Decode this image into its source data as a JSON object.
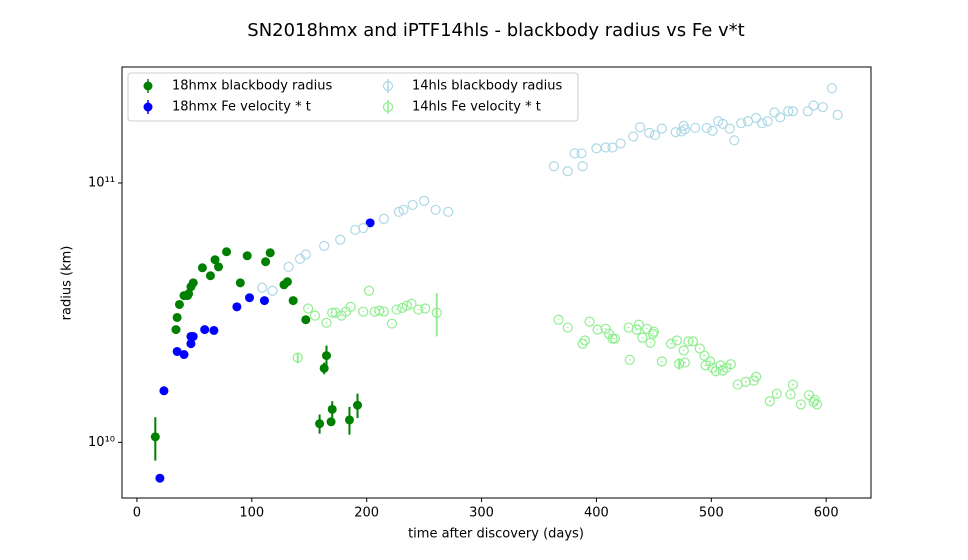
{
  "chart_data": {
    "type": "scatter",
    "title": "SN2018hmx and iPTF14hls - blackbody radius vs Fe v*t",
    "x_label": "time after discovery (days)",
    "y_label": "radius (km)",
    "xlim": [
      -13,
      639
    ],
    "ylim": [
      6100000000.0,
      280000000000.0
    ],
    "ylog": true,
    "xticks": [
      0,
      100,
      200,
      300,
      400,
      500,
      600
    ],
    "yticks": [
      {
        "value": 10000000000.0,
        "label": "10¹⁰"
      },
      {
        "value": 100000000000.0,
        "label": "10¹¹"
      }
    ],
    "legend": "upper left",
    "series": [
      {
        "name": "18hmx blackbody radius",
        "color": "#008000",
        "filled": true,
        "x": [
          16,
          34,
          35,
          37,
          41,
          44,
          45,
          47,
          49,
          57,
          64,
          68,
          71,
          78,
          90,
          96,
          112,
          116,
          128,
          131,
          136,
          147,
          159,
          163,
          165,
          169,
          170,
          185,
          192
        ],
        "values": [
          10500000000.0,
          27200000000.0,
          30300000000.0,
          34000000000.0,
          36800000000.0,
          36800000000.0,
          37400000000.0,
          39800000000.0,
          41200000000.0,
          47100000000.0,
          43900000000.0,
          50600000000.0,
          47500000000.0,
          54300000000.0,
          41200000000.0,
          52400000000.0,
          49700000000.0,
          53800000000.0,
          40500000000.0,
          41600000000.0,
          35200000000.0,
          29700000000.0,
          11800000000.0,
          19300000000.0,
          21600000000.0,
          12000000000.0,
          13400000000.0,
          12200000000.0,
          13900000000.0
        ],
        "errors": [
          2000000000.0,
          100000000.0,
          100000000.0,
          100000000.0,
          100000000.0,
          100000000.0,
          100000000.0,
          100000000.0,
          100000000.0,
          100000000.0,
          100000000.0,
          100000000.0,
          100000000.0,
          100000000.0,
          100000000.0,
          100000000.0,
          100000000.0,
          100000000.0,
          100000000.0,
          100000000.0,
          100000000.0,
          100000000.0,
          1000000000.0,
          1000000000.0,
          2000000000.0,
          100000000.0,
          1000000000.0,
          1500000000.0,
          1500000000.0
        ]
      },
      {
        "name": "18hmx Fe velocity * t",
        "color": "#0000ff",
        "filled": true,
        "x": [
          20,
          23.5,
          35,
          41,
          47,
          47,
          49,
          59,
          67,
          87,
          98,
          111,
          203
        ],
        "values": [
          7270000000.0,
          15800000000.0,
          22400000000.0,
          21800000000.0,
          24000000000.0,
          25600000000.0,
          25600000000.0,
          27200000000.0,
          27000000000.0,
          33300000000.0,
          36100000000.0,
          35200000000.0,
          70200000000.0
        ]
      },
      {
        "name": "14hls blackbody radius",
        "color": "#add8e6",
        "filled": false,
        "x": [
          109,
          118,
          132,
          142,
          147,
          163,
          177,
          190,
          197,
          215,
          228,
          232,
          240,
          250,
          260,
          271,
          363,
          375,
          381,
          387,
          388,
          400,
          408,
          414,
          421,
          432,
          438,
          446,
          451,
          457,
          469,
          474,
          476,
          477,
          486,
          496,
          501,
          506,
          510,
          516,
          520,
          526,
          532,
          539,
          544,
          549,
          555,
          560,
          567,
          571,
          584,
          589,
          597,
          605,
          610
        ],
        "values": [
          39500000000.0,
          38400000000.0,
          47500000000.0,
          51000000000.0,
          53000000000.0,
          57200000000.0,
          60400000000.0,
          65900000000.0,
          67000000000.0,
          72700000000.0,
          77400000000.0,
          78800000000.0,
          82300000000.0,
          85300000000.0,
          78800000000.0,
          77400000000.0,
          116000000000.0,
          111000000000.0,
          130000000000.0,
          130000000000.0,
          116000000000.0,
          136000000000.0,
          137000000000.0,
          137000000000.0,
          142000000000.0,
          151000000000.0,
          164000000000.0,
          156000000000.0,
          153000000000.0,
          162000000000.0,
          157000000000.0,
          158000000000.0,
          166000000000.0,
          161000000000.0,
          163000000000.0,
          163000000000.0,
          159000000000.0,
          173000000000.0,
          169000000000.0,
          162000000000.0,
          146000000000.0,
          170000000000.0,
          173000000000.0,
          178000000000.0,
          170000000000.0,
          173000000000.0,
          187000000000.0,
          179000000000.0,
          189000000000.0,
          189000000000.0,
          189000000000.0,
          199000000000.0,
          196000000000.0,
          232000000000.0,
          183000000000.0
        ]
      },
      {
        "name": "14hls Fe velocity * t",
        "color": "#90ee90",
        "filled": false,
        "x": [
          140,
          149,
          155,
          165,
          170,
          173,
          178,
          182,
          186,
          197,
          202,
          207,
          211,
          215,
          222,
          226,
          231,
          235,
          239,
          245,
          251,
          261,
          367,
          375,
          388,
          390,
          394,
          401,
          408,
          411,
          414,
          416,
          428,
          429,
          435,
          437,
          440,
          444,
          447,
          449,
          450,
          457,
          465,
          470,
          472,
          476,
          477,
          480,
          484,
          490,
          494,
          495,
          499,
          501,
          504,
          508,
          510,
          513,
          517,
          523,
          530,
          537,
          539,
          551,
          557,
          569,
          571,
          578,
          585,
          589,
          590,
          592
        ],
        "values": [
          21200000000.0,
          32800000000.0,
          30800000000.0,
          28900000000.0,
          31600000000.0,
          31600000000.0,
          30800000000.0,
          31900000000.0,
          33300000000.0,
          31900000000.0,
          38400000000.0,
          31900000000.0,
          32200000000.0,
          31900000000.0,
          28700000000.0,
          32500000000.0,
          33000000000.0,
          33600000000.0,
          34200000000.0,
          32500000000.0,
          32800000000.0,
          31600000000.0,
          29700000000.0,
          27700000000.0,
          24000000000.0,
          24700000000.0,
          29200000000.0,
          27200000000.0,
          27400000000.0,
          26200000000.0,
          25100000000.0,
          25100000000.0,
          27700000000.0,
          20800000000.0,
          27200000000.0,
          28400000000.0,
          25300000000.0,
          27400000000.0,
          24200000000.0,
          26200000000.0,
          26700000000.0,
          20500000000.0,
          24000000000.0,
          24700000000.0,
          20100000000.0,
          22600000000.0,
          20300000000.0,
          24500000000.0,
          24500000000.0,
          23000000000.0,
          21600000000.0,
          19800000000.0,
          20500000000.0,
          19400000000.0,
          18800000000.0,
          19800000000.0,
          18900000000.0,
          19400000000.0,
          20000000000.0,
          16700000000.0,
          17100000000.0,
          17300000000.0,
          17900000000.0,
          14400000000.0,
          15400000000.0,
          15300000000.0,
          16700000000.0,
          14000000000.0,
          15200000000.0,
          14300000000.0,
          14600000000.0,
          14000000000.0
        ],
        "errors": [
          1000000000.0,
          100000000.0,
          100000000.0,
          100000000.0,
          100000000.0,
          100000000.0,
          100000000.0,
          100000000.0,
          100000000.0,
          100000000.0,
          100000000.0,
          100000000.0,
          100000000.0,
          100000000.0,
          100000000.0,
          100000000.0,
          100000000.0,
          100000000.0,
          100000000.0,
          100000000.0,
          100000000.0,
          6000000000.0,
          100000000.0,
          100000000.0,
          100000000.0,
          100000000.0,
          100000000.0,
          100000000.0,
          100000000.0,
          100000000.0,
          100000000.0,
          100000000.0,
          100000000.0,
          100000000.0,
          100000000.0,
          100000000.0,
          100000000.0,
          100000000.0,
          100000000.0,
          100000000.0,
          100000000.0,
          100000000.0,
          100000000.0,
          100000000.0,
          1000000000.0,
          100000000.0,
          100000000.0,
          100000000.0,
          100000000.0,
          100000000.0,
          100000000.0,
          100000000.0,
          100000000.0,
          100000000.0,
          100000000.0,
          100000000.0,
          100000000.0,
          100000000.0,
          100000000.0,
          100000000.0,
          100000000.0,
          100000000.0,
          100000000.0,
          100000000.0,
          100000000.0,
          100000000.0,
          100000000.0,
          100000000.0,
          100000000.0,
          100000000.0,
          100000000.0,
          100000000.0
        ]
      }
    ]
  }
}
